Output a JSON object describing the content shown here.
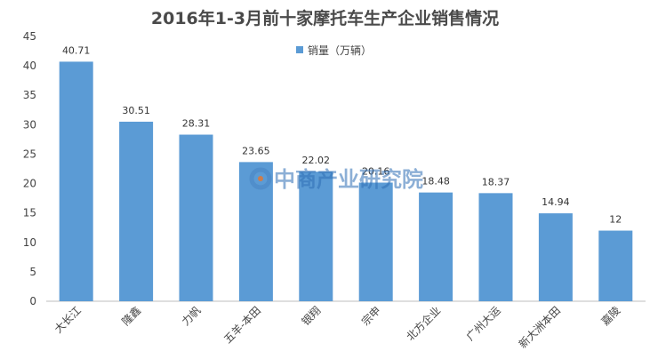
{
  "chart_data": {
    "type": "bar",
    "title": "2016年1-3月前十家摩托车生产企业销售情况",
    "categories": [
      "大长江",
      "隆鑫",
      "力帆",
      "五羊-本田",
      "银翔",
      "宗申",
      "北方企业",
      "广州大运",
      "新大洲本田",
      "嘉陵"
    ],
    "series": [
      {
        "name": "销量（万辆）",
        "values": [
          40.71,
          30.51,
          28.31,
          23.65,
          22.02,
          20.16,
          18.48,
          18.37,
          14.94,
          12
        ]
      }
    ],
    "ylim": [
      0,
      45
    ],
    "yticks": [
      0,
      5,
      10,
      15,
      20,
      25,
      30,
      35,
      40,
      45
    ],
    "grid": false,
    "legend_position": "top-center",
    "bar_color": "#5b9bd5"
  },
  "watermark": {
    "text": "中商产业研究院",
    "icon": "company-logo-icon"
  }
}
